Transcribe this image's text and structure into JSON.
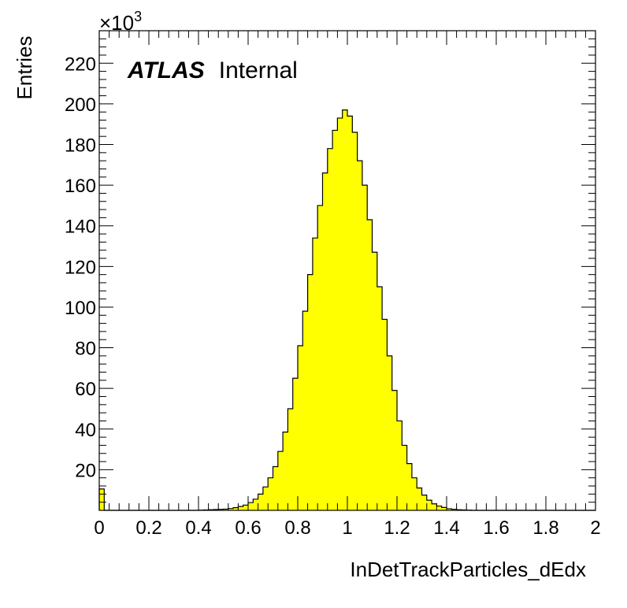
{
  "chart_data": {
    "type": "bar",
    "xlabel": "InDetTrackParticles_dEdx",
    "ylabel": "Entries",
    "y_multiplier": {
      "base": "×10",
      "exponent": "3"
    },
    "label_experiment": "ATLAS",
    "label_status": "Internal",
    "xlim": [
      0,
      2
    ],
    "ylim": [
      0,
      236
    ],
    "bin_width": 0.02,
    "x_ticks": [
      "0",
      "0.2",
      "0.4",
      "0.6",
      "0.8",
      "1",
      "1.2",
      "1.4",
      "1.6",
      "1.8",
      "2"
    ],
    "y_ticks": [
      "20",
      "40",
      "60",
      "80",
      "100",
      "120",
      "140",
      "160",
      "180",
      "200",
      "220"
    ],
    "fill_color": "#ffff00",
    "line_color": "#000000",
    "values": [
      10.5,
      0,
      0,
      0,
      0,
      0,
      0,
      0,
      0,
      0,
      0,
      0,
      0,
      0,
      0,
      0,
      0,
      0,
      0,
      0,
      0.1,
      0.2,
      0.3,
      0.4,
      0.5,
      0.6,
      0.9,
      1.3,
      1.9,
      2.6,
      3.8,
      5.5,
      8,
      11.5,
      16,
      21.5,
      29,
      38.5,
      50,
      65,
      81,
      98,
      116,
      134,
      150,
      166,
      178,
      187,
      193,
      197,
      194,
      186,
      172,
      160,
      143,
      127,
      110,
      94,
      76,
      59,
      44,
      32,
      23,
      16,
      11,
      7.5,
      5,
      3.2,
      2.1,
      1.4,
      0.8,
      0.5,
      0.3,
      0.2,
      0.1,
      0,
      0,
      0,
      0,
      0,
      0,
      0,
      0,
      0,
      0,
      0,
      0,
      0,
      0,
      0,
      0,
      0,
      0,
      0,
      0,
      0,
      0,
      0,
      0,
      0
    ]
  }
}
